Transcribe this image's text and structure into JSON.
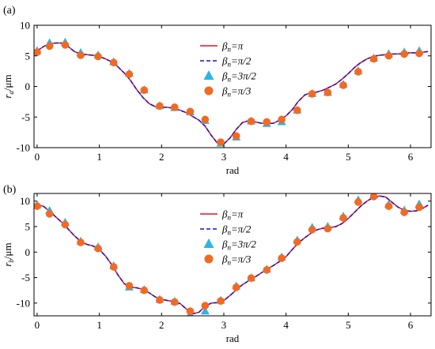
{
  "colors": {
    "line_pi": "#e8141c",
    "line_pi2": "#1414c8",
    "tri": "#2eb4e6",
    "circ": "#f26a21",
    "axis": "#000000"
  },
  "chart_data": [
    {
      "type": "line",
      "panel_label": "(a)",
      "ylabel_main": "r",
      "ylabel_sub": "a",
      "ylabel_unit": "/μm",
      "xlabel": "rad",
      "xlim": [
        -0.05,
        6.33
      ],
      "ylim": [
        -10,
        10
      ],
      "xticks": [
        "0",
        "1",
        "2",
        "3",
        "4",
        "5",
        "6"
      ],
      "yticks": [
        "-10",
        "-5",
        "0",
        "5",
        "10"
      ],
      "legend_position": "upper-center",
      "legend": [
        {
          "sym": "β",
          "sub": "n",
          "rest": "=π",
          "marker": "line-solid-red"
        },
        {
          "sym": "β",
          "sub": "n",
          "rest": "=π/2",
          "marker": "line-dashed-blue"
        },
        {
          "sym": "β",
          "sub": "n",
          "rest": "=3π/2",
          "marker": "triangle-cyan"
        },
        {
          "sym": "β",
          "sub": "n",
          "rest": "=π/3",
          "marker": "circle-orange"
        }
      ],
      "series": [
        {
          "name": "βn=π",
          "style": "solid",
          "x": [
            0.0,
            0.1,
            0.2,
            0.3,
            0.39,
            0.5,
            0.6,
            0.7,
            0.8,
            0.9,
            1.0,
            1.1,
            1.2,
            1.3,
            1.4,
            1.5,
            1.6,
            1.7,
            1.8,
            1.9,
            2.0,
            2.1,
            2.2,
            2.3,
            2.4,
            2.5,
            2.6,
            2.7,
            2.8,
            2.9,
            2.95,
            3.0,
            3.1,
            3.2,
            3.3,
            3.4,
            3.5,
            3.6,
            3.7,
            3.8,
            3.9,
            4.0,
            4.1,
            4.2,
            4.3,
            4.4,
            4.5,
            4.6,
            4.7,
            4.8,
            4.9,
            5.0,
            5.1,
            5.2,
            5.3,
            5.4,
            5.5,
            5.6,
            5.7,
            5.8,
            5.9,
            6.0,
            6.1,
            6.2,
            6.28
          ],
          "y": [
            5.8,
            6.5,
            7.0,
            7.1,
            7.1,
            6.5,
            5.7,
            5.3,
            5.2,
            5.1,
            4.9,
            4.5,
            4.0,
            3.2,
            2.2,
            1.0,
            -0.5,
            -1.8,
            -2.8,
            -3.3,
            -3.4,
            -3.4,
            -3.6,
            -3.9,
            -4.3,
            -4.9,
            -5.5,
            -6.5,
            -8.0,
            -9.3,
            -9.6,
            -9.4,
            -8.4,
            -7.0,
            -5.9,
            -5.6,
            -5.8,
            -6.0,
            -6.1,
            -6.0,
            -5.5,
            -4.8,
            -3.8,
            -2.4,
            -1.4,
            -1.0,
            -0.9,
            -0.6,
            -0.1,
            0.4,
            1.2,
            2.1,
            3.1,
            3.9,
            4.5,
            4.9,
            5.1,
            5.2,
            5.3,
            5.3,
            5.4,
            5.5,
            5.5,
            5.6,
            5.7
          ]
        },
        {
          "name": "βn=π/2",
          "style": "dashed",
          "x": [
            0.0,
            0.1,
            0.2,
            0.3,
            0.39,
            0.5,
            0.6,
            0.7,
            0.8,
            0.9,
            1.0,
            1.1,
            1.2,
            1.3,
            1.4,
            1.5,
            1.6,
            1.7,
            1.8,
            1.9,
            2.0,
            2.1,
            2.2,
            2.3,
            2.4,
            2.5,
            2.6,
            2.7,
            2.8,
            2.9,
            2.95,
            3.0,
            3.1,
            3.2,
            3.3,
            3.4,
            3.5,
            3.6,
            3.7,
            3.8,
            3.9,
            4.0,
            4.1,
            4.2,
            4.3,
            4.4,
            4.5,
            4.6,
            4.7,
            4.8,
            4.9,
            5.0,
            5.1,
            5.2,
            5.3,
            5.4,
            5.5,
            5.6,
            5.7,
            5.8,
            5.9,
            6.0,
            6.1,
            6.2,
            6.28
          ],
          "y": [
            5.8,
            6.5,
            7.0,
            7.1,
            7.1,
            6.5,
            5.7,
            5.3,
            5.2,
            5.1,
            4.9,
            4.5,
            4.0,
            3.2,
            2.2,
            1.0,
            -0.5,
            -1.8,
            -2.8,
            -3.3,
            -3.4,
            -3.4,
            -3.6,
            -3.9,
            -4.3,
            -4.9,
            -5.5,
            -6.5,
            -8.0,
            -9.3,
            -9.6,
            -9.4,
            -8.4,
            -7.0,
            -5.9,
            -5.6,
            -5.8,
            -6.0,
            -6.1,
            -6.0,
            -5.5,
            -4.8,
            -3.8,
            -2.4,
            -1.4,
            -1.0,
            -0.9,
            -0.6,
            -0.1,
            0.4,
            1.2,
            2.1,
            3.1,
            3.9,
            4.5,
            4.9,
            5.1,
            5.2,
            5.3,
            5.3,
            5.4,
            5.5,
            5.5,
            5.6,
            5.7
          ]
        },
        {
          "name": "βn=3π/2",
          "style": "triangle",
          "x": [
            0.0,
            0.2,
            0.45,
            0.7,
            0.98,
            1.23,
            1.48,
            1.72,
            1.97,
            2.21,
            2.46,
            2.7,
            2.95,
            3.2,
            3.44,
            3.69,
            3.93,
            4.18,
            4.42,
            4.67,
            4.92,
            5.16,
            5.41,
            5.65,
            5.9,
            6.14
          ],
          "y": [
            5.8,
            7.1,
            7.2,
            5.5,
            5.1,
            4.0,
            2.1,
            -0.6,
            -3.2,
            -3.5,
            -4.2,
            -5.6,
            -9.3,
            -8.3,
            -5.7,
            -6.1,
            -5.8,
            -3.9,
            -1.2,
            -1.0,
            0.3,
            2.5,
            4.6,
            5.3,
            5.6,
            5.8
          ]
        },
        {
          "name": "βn=π/3",
          "style": "circle",
          "x": [
            0.0,
            0.2,
            0.45,
            0.7,
            0.98,
            1.23,
            1.48,
            1.72,
            1.97,
            2.21,
            2.46,
            2.7,
            2.95,
            3.2,
            3.44,
            3.69,
            3.93,
            4.18,
            4.42,
            4.67,
            4.92,
            5.16,
            5.41,
            5.65,
            5.9,
            6.14
          ],
          "y": [
            5.6,
            6.6,
            6.8,
            5.1,
            4.9,
            3.9,
            2.0,
            -0.6,
            -3.2,
            -3.4,
            -4.1,
            -5.4,
            -9.1,
            -8.1,
            -5.7,
            -5.8,
            -5.4,
            -3.9,
            -1.2,
            -1.0,
            0.2,
            2.4,
            4.5,
            5.0,
            5.3,
            5.4
          ]
        }
      ]
    },
    {
      "type": "line",
      "panel_label": "(b)",
      "ylabel_main": "r",
      "ylabel_sub": "b",
      "ylabel_unit": "/μm",
      "xlabel": "rad",
      "xlim": [
        -0.05,
        6.33
      ],
      "ylim": [
        -12.5,
        11.5
      ],
      "xticks": [
        "0",
        "1",
        "2",
        "3",
        "4",
        "5",
        "6"
      ],
      "yticks": [
        "-10",
        "-5",
        "0",
        "5",
        "10"
      ],
      "legend_position": "upper-center",
      "legend": [
        {
          "sym": "β",
          "sub": "n",
          "rest": "=π",
          "marker": "line-solid-red"
        },
        {
          "sym": "β",
          "sub": "n",
          "rest": "=π/2",
          "marker": "line-dashed-blue"
        },
        {
          "sym": "β",
          "sub": "n",
          "rest": "=3π/2",
          "marker": "triangle-cyan"
        },
        {
          "sym": "β",
          "sub": "n",
          "rest": "=π/3",
          "marker": "circle-orange"
        }
      ],
      "series": [
        {
          "name": "βn=π",
          "style": "solid",
          "x": [
            0.0,
            0.1,
            0.2,
            0.3,
            0.4,
            0.5,
            0.6,
            0.7,
            0.8,
            0.9,
            1.0,
            1.1,
            1.2,
            1.3,
            1.4,
            1.5,
            1.6,
            1.7,
            1.8,
            1.9,
            2.0,
            2.1,
            2.2,
            2.3,
            2.4,
            2.5,
            2.6,
            2.7,
            2.8,
            2.9,
            3.0,
            3.1,
            3.2,
            3.3,
            3.4,
            3.5,
            3.6,
            3.7,
            3.8,
            3.9,
            4.0,
            4.1,
            4.2,
            4.3,
            4.4,
            4.5,
            4.6,
            4.7,
            4.8,
            4.9,
            5.0,
            5.1,
            5.2,
            5.3,
            5.4,
            5.5,
            5.6,
            5.7,
            5.8,
            5.9,
            6.0,
            6.1,
            6.2,
            6.28
          ],
          "y": [
            9.2,
            9.0,
            8.0,
            6.9,
            5.8,
            4.5,
            3.2,
            2.1,
            1.5,
            1.2,
            0.5,
            -0.8,
            -2.5,
            -4.5,
            -6.2,
            -6.9,
            -7.0,
            -7.3,
            -8.0,
            -8.8,
            -9.3,
            -9.5,
            -9.7,
            -10.1,
            -11.2,
            -12.1,
            -11.8,
            -10.6,
            -10.0,
            -9.9,
            -9.5,
            -8.5,
            -7.4,
            -6.4,
            -5.6,
            -4.9,
            -4.1,
            -3.3,
            -2.6,
            -1.8,
            -0.9,
            0.5,
            1.8,
            2.8,
            3.7,
            4.4,
            4.7,
            4.8,
            5.0,
            5.6,
            6.6,
            7.8,
            9.0,
            10.0,
            10.7,
            11.0,
            10.8,
            9.8,
            8.8,
            8.2,
            8.0,
            8.1,
            8.6,
            9.2
          ]
        },
        {
          "name": "βn=π/2",
          "style": "dashed",
          "x": [
            0.0,
            0.1,
            0.2,
            0.3,
            0.4,
            0.5,
            0.6,
            0.7,
            0.8,
            0.9,
            1.0,
            1.1,
            1.2,
            1.3,
            1.4,
            1.5,
            1.6,
            1.7,
            1.8,
            1.9,
            2.0,
            2.1,
            2.2,
            2.3,
            2.4,
            2.5,
            2.6,
            2.7,
            2.8,
            2.9,
            3.0,
            3.1,
            3.2,
            3.3,
            3.4,
            3.5,
            3.6,
            3.7,
            3.8,
            3.9,
            4.0,
            4.1,
            4.2,
            4.3,
            4.4,
            4.5,
            4.6,
            4.7,
            4.8,
            4.9,
            5.0,
            5.1,
            5.2,
            5.3,
            5.4,
            5.5,
            5.6,
            5.7,
            5.8,
            5.9,
            6.0,
            6.1,
            6.2,
            6.28
          ],
          "y": [
            9.2,
            9.0,
            8.0,
            6.9,
            5.8,
            4.5,
            3.2,
            2.1,
            1.5,
            1.2,
            0.5,
            -0.8,
            -2.5,
            -4.5,
            -6.2,
            -6.9,
            -7.0,
            -7.3,
            -8.0,
            -8.8,
            -9.3,
            -9.5,
            -9.7,
            -10.1,
            -11.2,
            -12.1,
            -11.8,
            -10.6,
            -10.0,
            -9.9,
            -9.5,
            -8.5,
            -7.4,
            -6.4,
            -5.6,
            -4.9,
            -4.1,
            -3.3,
            -2.6,
            -1.8,
            -0.9,
            0.5,
            1.8,
            2.8,
            3.7,
            4.4,
            4.7,
            4.8,
            5.0,
            5.6,
            6.6,
            7.8,
            9.0,
            10.0,
            10.7,
            11.0,
            10.8,
            9.8,
            8.8,
            8.2,
            8.0,
            8.1,
            8.6,
            9.2
          ]
        },
        {
          "name": "βn=3π/2",
          "style": "triangle",
          "x": [
            0.0,
            0.2,
            0.45,
            0.7,
            0.98,
            1.23,
            1.48,
            1.72,
            1.97,
            2.21,
            2.46,
            2.7,
            2.95,
            3.2,
            3.44,
            3.69,
            3.93,
            4.18,
            4.42,
            4.67,
            4.92,
            5.16,
            5.41,
            5.65,
            5.9,
            6.14
          ],
          "y": [
            9.2,
            8.1,
            5.8,
            2.1,
            1.0,
            -2.7,
            -6.9,
            -7.4,
            -9.3,
            -9.7,
            -12.2,
            -11.6,
            -9.5,
            -6.7,
            -5.1,
            -3.4,
            -1.0,
            2.3,
            4.8,
            5.0,
            7.0,
            10.2,
            11.2,
            9.3,
            8.2,
            9.4
          ]
        },
        {
          "name": "βn=π/3",
          "style": "circle",
          "x": [
            0.0,
            0.2,
            0.45,
            0.7,
            0.98,
            1.23,
            1.48,
            1.72,
            1.97,
            2.21,
            2.46,
            2.7,
            2.95,
            3.2,
            3.44,
            3.69,
            3.93,
            4.18,
            4.42,
            4.67,
            4.92,
            5.16,
            5.41,
            5.65,
            5.9,
            6.14
          ],
          "y": [
            9.0,
            7.5,
            5.4,
            1.9,
            0.7,
            -2.9,
            -6.6,
            -7.5,
            -9.4,
            -9.8,
            -11.6,
            -10.5,
            -9.6,
            -6.9,
            -5.1,
            -3.5,
            -1.2,
            2.0,
            4.4,
            4.6,
            6.7,
            9.8,
            10.9,
            9.0,
            7.8,
            8.8
          ]
        }
      ]
    }
  ]
}
